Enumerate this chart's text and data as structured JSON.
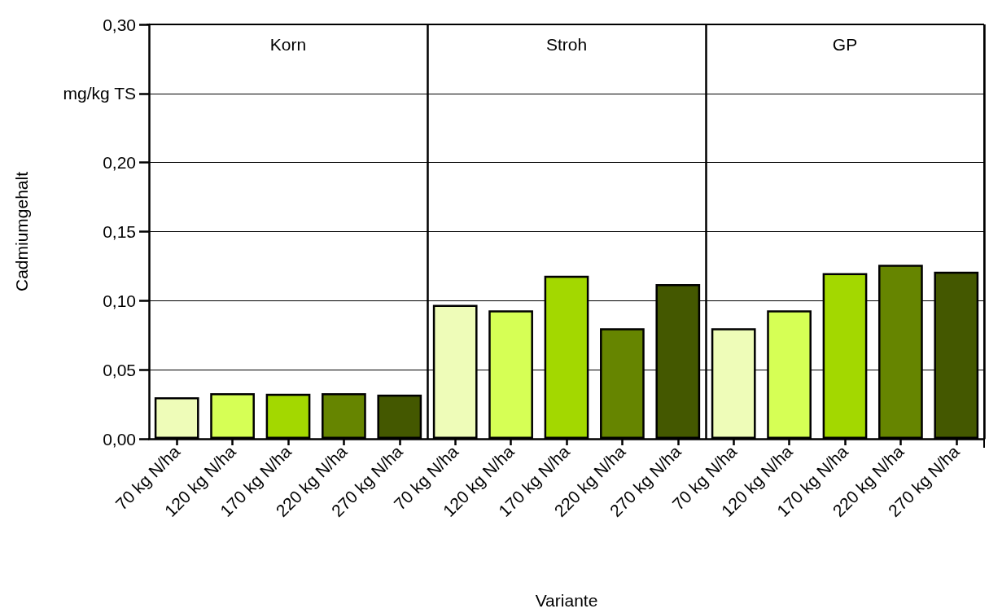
{
  "chart_data": {
    "type": "bar",
    "xlabel": "Variante",
    "ylabel": "Cadmiumgehalt",
    "categories": [
      "70 kg N/ha",
      "120 kg N/ha",
      "170 kg N/ha",
      "220 kg N/ha",
      "270 kg N/ha",
      "70 kg N/ha",
      "120 kg N/ha",
      "170 kg N/ha",
      "220 kg N/ha",
      "270 kg N/ha",
      "70 kg N/ha",
      "120 kg N/ha",
      "170 kg N/ha",
      "220 kg N/ha",
      "270 kg N/ha"
    ],
    "values": [
      0.03,
      0.033,
      0.0325,
      0.033,
      0.032,
      0.097,
      0.093,
      0.118,
      0.08,
      0.112,
      0.08,
      0.093,
      0.12,
      0.126,
      0.121
    ],
    "colors": [
      "#eefcb8",
      "#d6ff55",
      "#a3d800",
      "#668500",
      "#445800",
      "#eefcb8",
      "#d6ff55",
      "#a3d800",
      "#668500",
      "#445800",
      "#eefcb8",
      "#d6ff55",
      "#a3d800",
      "#668500",
      "#445800"
    ],
    "ylim": [
      0,
      0.3
    ],
    "yticks": [
      {
        "value": 0,
        "label": "0,00"
      },
      {
        "value": 0.05,
        "label": "0,05"
      },
      {
        "value": 0.1,
        "label": "0,10"
      },
      {
        "value": 0.15,
        "label": "0,15"
      },
      {
        "value": 0.2,
        "label": "0,20"
      },
      {
        "value": 0.25,
        "label": "mg/kg TS"
      },
      {
        "value": 0.3,
        "label": "0,30"
      }
    ],
    "annotations": [
      "Korn",
      "Stroh",
      "GP"
    ],
    "grid": "y"
  }
}
